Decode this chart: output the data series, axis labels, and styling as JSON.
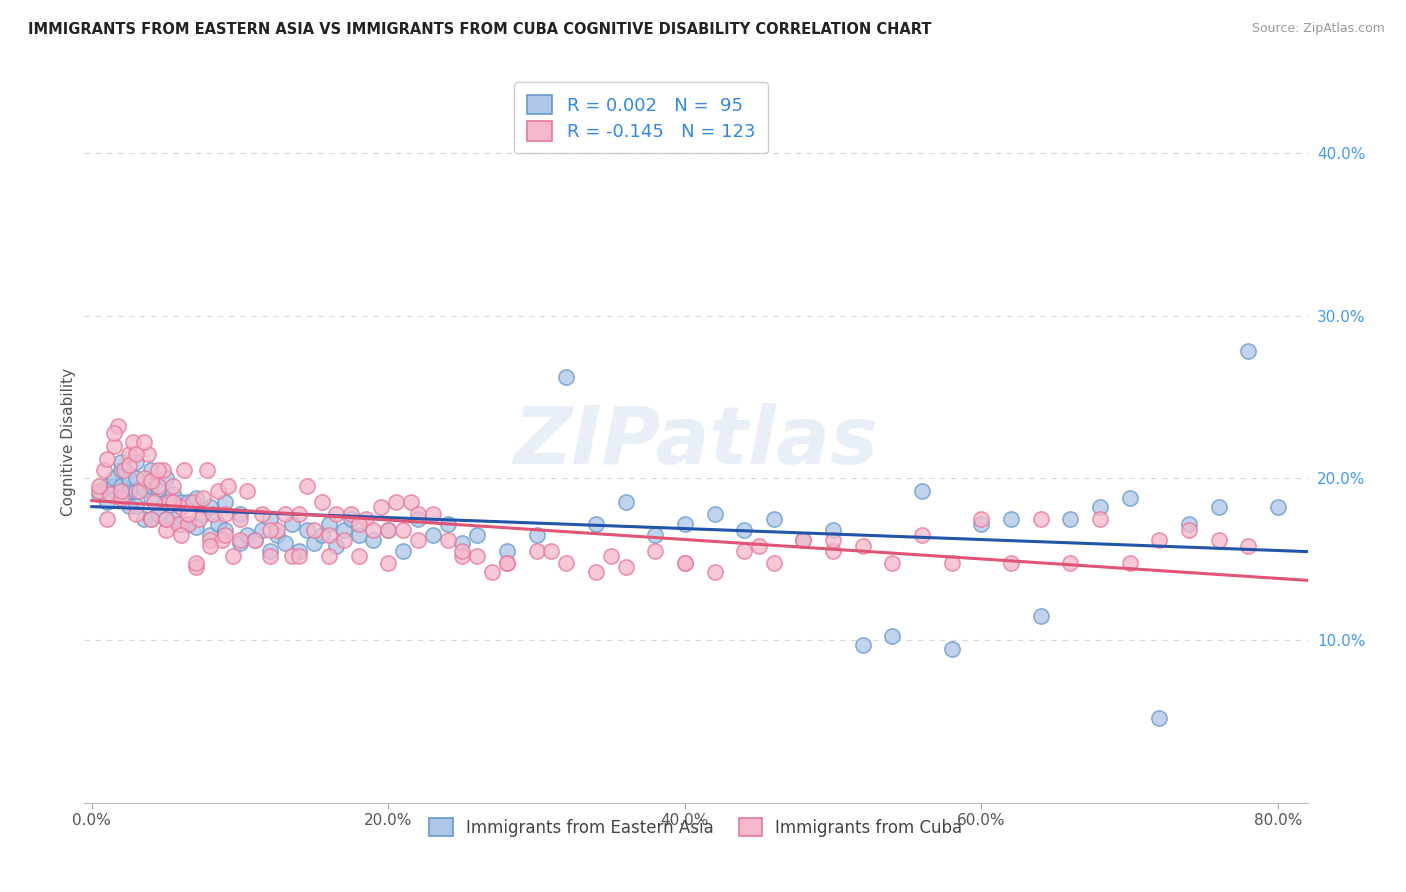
{
  "title": "IMMIGRANTS FROM EASTERN ASIA VS IMMIGRANTS FROM CUBA COGNITIVE DISABILITY CORRELATION CHART",
  "source": "Source: ZipAtlas.com",
  "xlabel_ticks": [
    "0.0%",
    "20.0%",
    "40.0%",
    "60.0%",
    "80.0%"
  ],
  "xlabel_tick_vals": [
    0.0,
    0.2,
    0.4,
    0.6,
    0.8
  ],
  "ylabel_ticks": [
    "40.0%",
    "30.0%",
    "20.0%",
    "10.0%"
  ],
  "ylabel_tick_vals": [
    0.4,
    0.3,
    0.2,
    0.1
  ],
  "xlim": [
    -0.005,
    0.82
  ],
  "ylim": [
    0.0,
    0.445
  ],
  "ylabel": "Cognitive Disability",
  "legend_labels": [
    "Immigrants from Eastern Asia",
    "Immigrants from Cuba"
  ],
  "series1_color": "#aec6e8",
  "series2_color": "#f5b8cb",
  "series1_edge_color": "#6699cc",
  "series2_edge_color": "#e87799",
  "series1_line_color": "#2255aa",
  "series2_line_color": "#e05575",
  "series1_R": 0.002,
  "series1_N": 95,
  "series2_R": -0.145,
  "series2_N": 123,
  "watermark": "ZIPatlas",
  "background_color": "#ffffff",
  "grid_color": "#d8d8d8",
  "eastern_asia_x": [
    0.005,
    0.01,
    0.01,
    0.015,
    0.015,
    0.02,
    0.02,
    0.02,
    0.02,
    0.025,
    0.025,
    0.025,
    0.03,
    0.03,
    0.03,
    0.03,
    0.035,
    0.035,
    0.04,
    0.04,
    0.04,
    0.04,
    0.045,
    0.045,
    0.05,
    0.05,
    0.05,
    0.055,
    0.055,
    0.06,
    0.06,
    0.065,
    0.065,
    0.07,
    0.07,
    0.075,
    0.08,
    0.08,
    0.085,
    0.09,
    0.09,
    0.1,
    0.1,
    0.105,
    0.11,
    0.115,
    0.12,
    0.12,
    0.125,
    0.13,
    0.135,
    0.14,
    0.145,
    0.15,
    0.155,
    0.16,
    0.165,
    0.17,
    0.175,
    0.18,
    0.19,
    0.2,
    0.21,
    0.22,
    0.23,
    0.24,
    0.25,
    0.26,
    0.28,
    0.3,
    0.32,
    0.34,
    0.36,
    0.38,
    0.4,
    0.42,
    0.44,
    0.46,
    0.48,
    0.5,
    0.52,
    0.54,
    0.56,
    0.58,
    0.6,
    0.62,
    0.64,
    0.66,
    0.68,
    0.7,
    0.72,
    0.74,
    0.76,
    0.78,
    0.8
  ],
  "eastern_asia_y": [
    0.19,
    0.185,
    0.195,
    0.195,
    0.2,
    0.188,
    0.195,
    0.205,
    0.21,
    0.183,
    0.192,
    0.2,
    0.183,
    0.192,
    0.2,
    0.21,
    0.175,
    0.193,
    0.175,
    0.188,
    0.195,
    0.205,
    0.178,
    0.193,
    0.175,
    0.185,
    0.2,
    0.175,
    0.19,
    0.172,
    0.185,
    0.172,
    0.185,
    0.17,
    0.188,
    0.178,
    0.165,
    0.182,
    0.172,
    0.168,
    0.185,
    0.16,
    0.178,
    0.165,
    0.162,
    0.168,
    0.155,
    0.175,
    0.165,
    0.16,
    0.172,
    0.155,
    0.168,
    0.16,
    0.165,
    0.172,
    0.158,
    0.168,
    0.175,
    0.165,
    0.162,
    0.168,
    0.155,
    0.175,
    0.165,
    0.172,
    0.16,
    0.165,
    0.155,
    0.165,
    0.262,
    0.172,
    0.185,
    0.165,
    0.172,
    0.178,
    0.168,
    0.175,
    0.162,
    0.168,
    0.097,
    0.103,
    0.192,
    0.095,
    0.172,
    0.175,
    0.115,
    0.175,
    0.182,
    0.188,
    0.052,
    0.172,
    0.182,
    0.278,
    0.182
  ],
  "cuba_x": [
    0.005,
    0.008,
    0.01,
    0.012,
    0.015,
    0.018,
    0.02,
    0.022,
    0.025,
    0.028,
    0.03,
    0.032,
    0.035,
    0.038,
    0.04,
    0.042,
    0.045,
    0.048,
    0.05,
    0.052,
    0.055,
    0.058,
    0.06,
    0.062,
    0.065,
    0.068,
    0.07,
    0.072,
    0.075,
    0.078,
    0.08,
    0.082,
    0.085,
    0.088,
    0.09,
    0.092,
    0.095,
    0.1,
    0.105,
    0.11,
    0.115,
    0.12,
    0.125,
    0.13,
    0.135,
    0.14,
    0.145,
    0.15,
    0.155,
    0.16,
    0.165,
    0.17,
    0.175,
    0.18,
    0.185,
    0.19,
    0.195,
    0.2,
    0.205,
    0.21,
    0.215,
    0.22,
    0.23,
    0.24,
    0.25,
    0.26,
    0.27,
    0.28,
    0.3,
    0.32,
    0.34,
    0.36,
    0.38,
    0.4,
    0.42,
    0.44,
    0.46,
    0.48,
    0.5,
    0.52,
    0.54,
    0.56,
    0.58,
    0.6,
    0.62,
    0.64,
    0.66,
    0.68,
    0.7,
    0.72,
    0.74,
    0.76,
    0.78,
    0.005,
    0.01,
    0.015,
    0.02,
    0.025,
    0.03,
    0.035,
    0.04,
    0.045,
    0.05,
    0.055,
    0.06,
    0.065,
    0.07,
    0.08,
    0.09,
    0.1,
    0.12,
    0.14,
    0.16,
    0.18,
    0.2,
    0.22,
    0.25,
    0.28,
    0.31,
    0.35,
    0.4,
    0.45,
    0.5
  ],
  "cuba_y": [
    0.192,
    0.205,
    0.175,
    0.19,
    0.22,
    0.232,
    0.188,
    0.205,
    0.215,
    0.222,
    0.178,
    0.192,
    0.2,
    0.215,
    0.175,
    0.185,
    0.195,
    0.205,
    0.168,
    0.185,
    0.195,
    0.172,
    0.182,
    0.205,
    0.172,
    0.185,
    0.145,
    0.175,
    0.188,
    0.205,
    0.162,
    0.178,
    0.192,
    0.162,
    0.178,
    0.195,
    0.152,
    0.175,
    0.192,
    0.162,
    0.178,
    0.152,
    0.168,
    0.178,
    0.152,
    0.178,
    0.195,
    0.168,
    0.185,
    0.152,
    0.178,
    0.162,
    0.178,
    0.152,
    0.175,
    0.168,
    0.182,
    0.168,
    0.185,
    0.168,
    0.185,
    0.178,
    0.178,
    0.162,
    0.152,
    0.152,
    0.142,
    0.148,
    0.155,
    0.148,
    0.142,
    0.145,
    0.155,
    0.148,
    0.142,
    0.155,
    0.148,
    0.162,
    0.155,
    0.158,
    0.148,
    0.165,
    0.148,
    0.175,
    0.148,
    0.175,
    0.148,
    0.175,
    0.148,
    0.162,
    0.168,
    0.162,
    0.158,
    0.195,
    0.212,
    0.228,
    0.192,
    0.208,
    0.215,
    0.222,
    0.198,
    0.205,
    0.175,
    0.185,
    0.165,
    0.178,
    0.148,
    0.158,
    0.165,
    0.162,
    0.168,
    0.152,
    0.165,
    0.172,
    0.148,
    0.162,
    0.155,
    0.148,
    0.155,
    0.152,
    0.148,
    0.158,
    0.162
  ]
}
